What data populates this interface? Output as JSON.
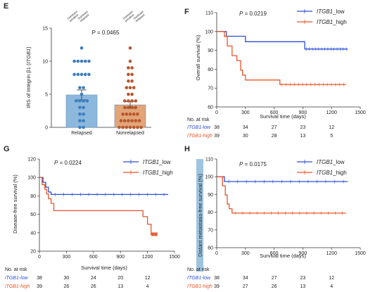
{
  "colors": {
    "blue": "#2a4fd6",
    "red": "#e8552a",
    "bar_blue": "#8db8dd",
    "bar_orange": "#e2a57a",
    "dot_blue": "#3c7dbf",
    "dot_orange": "#b8562c"
  },
  "chart_data": [
    {
      "panel": "E",
      "type": "bar",
      "categories": [
        "Relapsed",
        "Nonrelapsed"
      ],
      "values": [
        4.9,
        3.4
      ],
      "error": [
        0.75,
        0.5
      ],
      "ylabel": "IRS of Integrin β1 (ITGB1)",
      "ylabel_plain": "IRS of Integrin β1 (",
      "ylabel_italic": "ITGB1",
      "ylabel_close": ")",
      "ylim": [
        0,
        15
      ],
      "yticks": [
        "0",
        "5",
        "10",
        "15"
      ],
      "p_label": "P = 0.0465",
      "top_labels": [
        "Dominant\nsensitive",
        "Dominant\nrelapsed",
        "Dominant\nsensitive",
        "Dominant\nrelapsed"
      ],
      "dots": [
        [
          12,
          10,
          10,
          10,
          10,
          10,
          8,
          8,
          8,
          8,
          8,
          6,
          6,
          5,
          4,
          4,
          4,
          4,
          3,
          3,
          2,
          2,
          1,
          1,
          0,
          0
        ],
        [
          12,
          10,
          9,
          9,
          8,
          8,
          7,
          7,
          6,
          6,
          6,
          5,
          5,
          4,
          4,
          4,
          4,
          3,
          3,
          3,
          3,
          2,
          2,
          2,
          2,
          2,
          1,
          1,
          1,
          1,
          1,
          1,
          0,
          0,
          0,
          0,
          0,
          0,
          0
        ]
      ]
    },
    {
      "panel": "F",
      "type": "line",
      "p_label": "P = 0.0219",
      "ylabel": "Overall survival (%)",
      "xlabel": "Survival time (days)",
      "ylim": [
        60,
        110
      ],
      "yticks": [
        "60",
        "70",
        "80",
        "90",
        "100",
        "110"
      ],
      "xlim": [
        0,
        1500
      ],
      "xticks": [
        "0",
        "300",
        "600",
        "900",
        "1200",
        "1500"
      ],
      "series": [
        {
          "name": "ITGB1_low",
          "color": "#2a4fd6",
          "x": [
            0,
            100,
            100,
            300,
            300,
            920,
            920,
            1370
          ],
          "y": [
            100,
            100,
            97.5,
            97.5,
            94.6,
            94.6,
            90.7,
            90.7
          ]
        },
        {
          "name": "ITGB1_high",
          "color": "#e8552a",
          "x": [
            0,
            80,
            80,
            110,
            110,
            160,
            160,
            210,
            210,
            250,
            250,
            270,
            270,
            300,
            300,
            660,
            660,
            1350
          ],
          "y": [
            100,
            100,
            97.4,
            97.4,
            92.3,
            92.3,
            87.2,
            87.2,
            84.6,
            84.6,
            79.5,
            79.5,
            76.9,
            76.9,
            74.3,
            74.3,
            71.9,
            71.9
          ]
        }
      ],
      "risk_title": "No. at risk",
      "risk_rows": [
        {
          "label": "ITGB1-low",
          "values": [
            "38",
            "34",
            "27",
            "23",
            "12"
          ]
        },
        {
          "label": "ITGB1-high",
          "values": [
            "39",
            "30",
            "28",
            "13",
            "5"
          ]
        }
      ]
    },
    {
      "panel": "G",
      "type": "line",
      "p_label": "P = 0.0224",
      "ylabel": "Disease-free survival (%)",
      "xlabel": "Survival time (days)",
      "ylim": [
        20,
        120
      ],
      "yticks": [
        "20",
        "40",
        "60",
        "80",
        "100",
        "120"
      ],
      "xlim": [
        0,
        1500
      ],
      "xticks": [
        "0",
        "300",
        "600",
        "900",
        "1200",
        "1500"
      ],
      "series": [
        {
          "name": "ITGB1_low",
          "color": "#2a4fd6",
          "x": [
            0,
            40,
            40,
            70,
            70,
            100,
            100,
            130,
            130,
            1430
          ],
          "y": [
            100,
            100,
            94.7,
            94.7,
            89.5,
            89.5,
            84.2,
            84.2,
            81.5,
            81.5
          ]
        },
        {
          "name": "ITGB1_high",
          "color": "#e8552a",
          "x": [
            0,
            30,
            30,
            60,
            60,
            80,
            80,
            100,
            100,
            130,
            130,
            160,
            160,
            1150,
            1150,
            1200,
            1200,
            1240,
            1240,
            1310
          ],
          "y": [
            100,
            100,
            92.3,
            92.3,
            87.2,
            87.2,
            82.1,
            82.1,
            76.9,
            76.9,
            71.8,
            71.8,
            64.0,
            64.0,
            57.5,
            57.5,
            49.3,
            49.3,
            38.4,
            38.4
          ]
        }
      ],
      "risk_title": "No. at risk",
      "risk_rows": [
        {
          "label": "iTGB1-low",
          "values": [
            "38",
            "30",
            "24",
            "20",
            "12"
          ]
        },
        {
          "label": "iTGB1-high",
          "values": [
            "39",
            "26",
            "26",
            "13",
            "4"
          ]
        }
      ]
    },
    {
      "panel": "H",
      "type": "line",
      "p_label": "P = 0.0175",
      "ylabel": "Distant metastasis-free survival (%)",
      "xlabel": "Survival time (days)",
      "ylim": [
        60,
        110
      ],
      "yticks": [
        "60",
        "70",
        "80",
        "90",
        "100",
        "110"
      ],
      "xlim": [
        0,
        1500
      ],
      "xticks": [
        "0",
        "300",
        "600",
        "900",
        "1200",
        "1500"
      ],
      "series": [
        {
          "name": "ITGB1_low",
          "color": "#2a4fd6",
          "x": [
            0,
            80,
            80,
            1370
          ],
          "y": [
            100,
            100,
            97.3,
            97.3
          ]
        },
        {
          "name": "ITGB1_high",
          "color": "#e8552a",
          "x": [
            0,
            60,
            60,
            90,
            90,
            110,
            110,
            130,
            130,
            160,
            160,
            1350
          ],
          "y": [
            100,
            100,
            94.9,
            94.9,
            89.7,
            89.7,
            84.6,
            84.6,
            82.0,
            82.0,
            79.5,
            79.5
          ]
        }
      ],
      "risk_title": "No. at risk",
      "risk_rows": [
        {
          "label": "ITGB1-low",
          "values": [
            "38",
            "34",
            "27",
            "23",
            "12"
          ]
        },
        {
          "label": "ITGB1-high",
          "values": [
            "39",
            "27",
            "26",
            "13",
            "4"
          ]
        }
      ]
    }
  ]
}
